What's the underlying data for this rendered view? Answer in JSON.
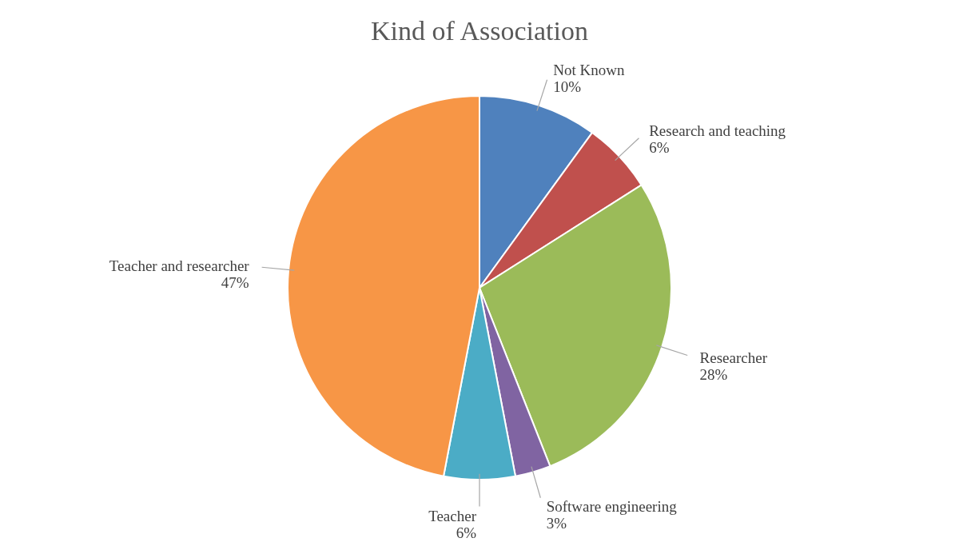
{
  "chart_data": {
    "type": "pie",
    "title": "Kind of Association",
    "categories": [
      "Not Known",
      "Research and teaching",
      "Researcher",
      "Software engineering",
      "Teacher",
      "Teacher and researcher"
    ],
    "values": [
      10,
      6,
      28,
      3,
      6,
      47
    ],
    "value_labels": [
      "10%",
      "6%",
      "28%",
      "3%",
      "6%",
      "47%"
    ],
    "colors": [
      "#4f81bd",
      "#c0504d",
      "#9bbb59",
      "#8064a2",
      "#4bacc6",
      "#f79646"
    ]
  }
}
